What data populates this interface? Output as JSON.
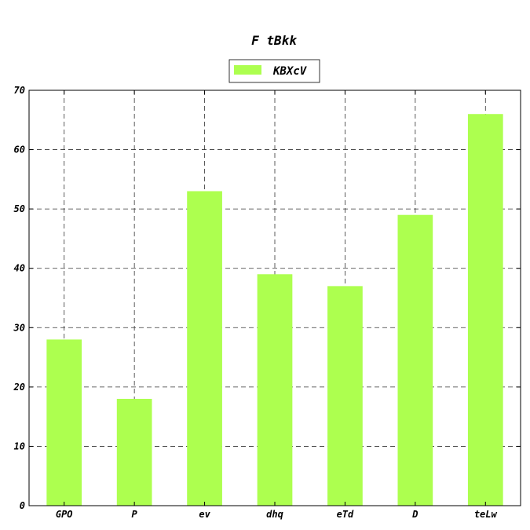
{
  "chart_data": {
    "type": "bar",
    "title": "F tBkk",
    "xlabel": "",
    "ylabel": "",
    "categories": [
      "GPO",
      "P",
      "ev",
      "dhq",
      "eTd",
      "D",
      "teLw"
    ],
    "series": [
      {
        "name": "KBXcV",
        "values": [
          28,
          18,
          53,
          39,
          37,
          49,
          66
        ]
      }
    ],
    "ylim": [
      0,
      70
    ],
    "yticks": [
      0,
      10,
      20,
      30,
      40,
      50,
      60,
      70
    ],
    "grid": true,
    "legend_position": "top-center",
    "colors": {
      "bar": "#adff4f",
      "grid": "#333333",
      "text": "#000000"
    }
  }
}
